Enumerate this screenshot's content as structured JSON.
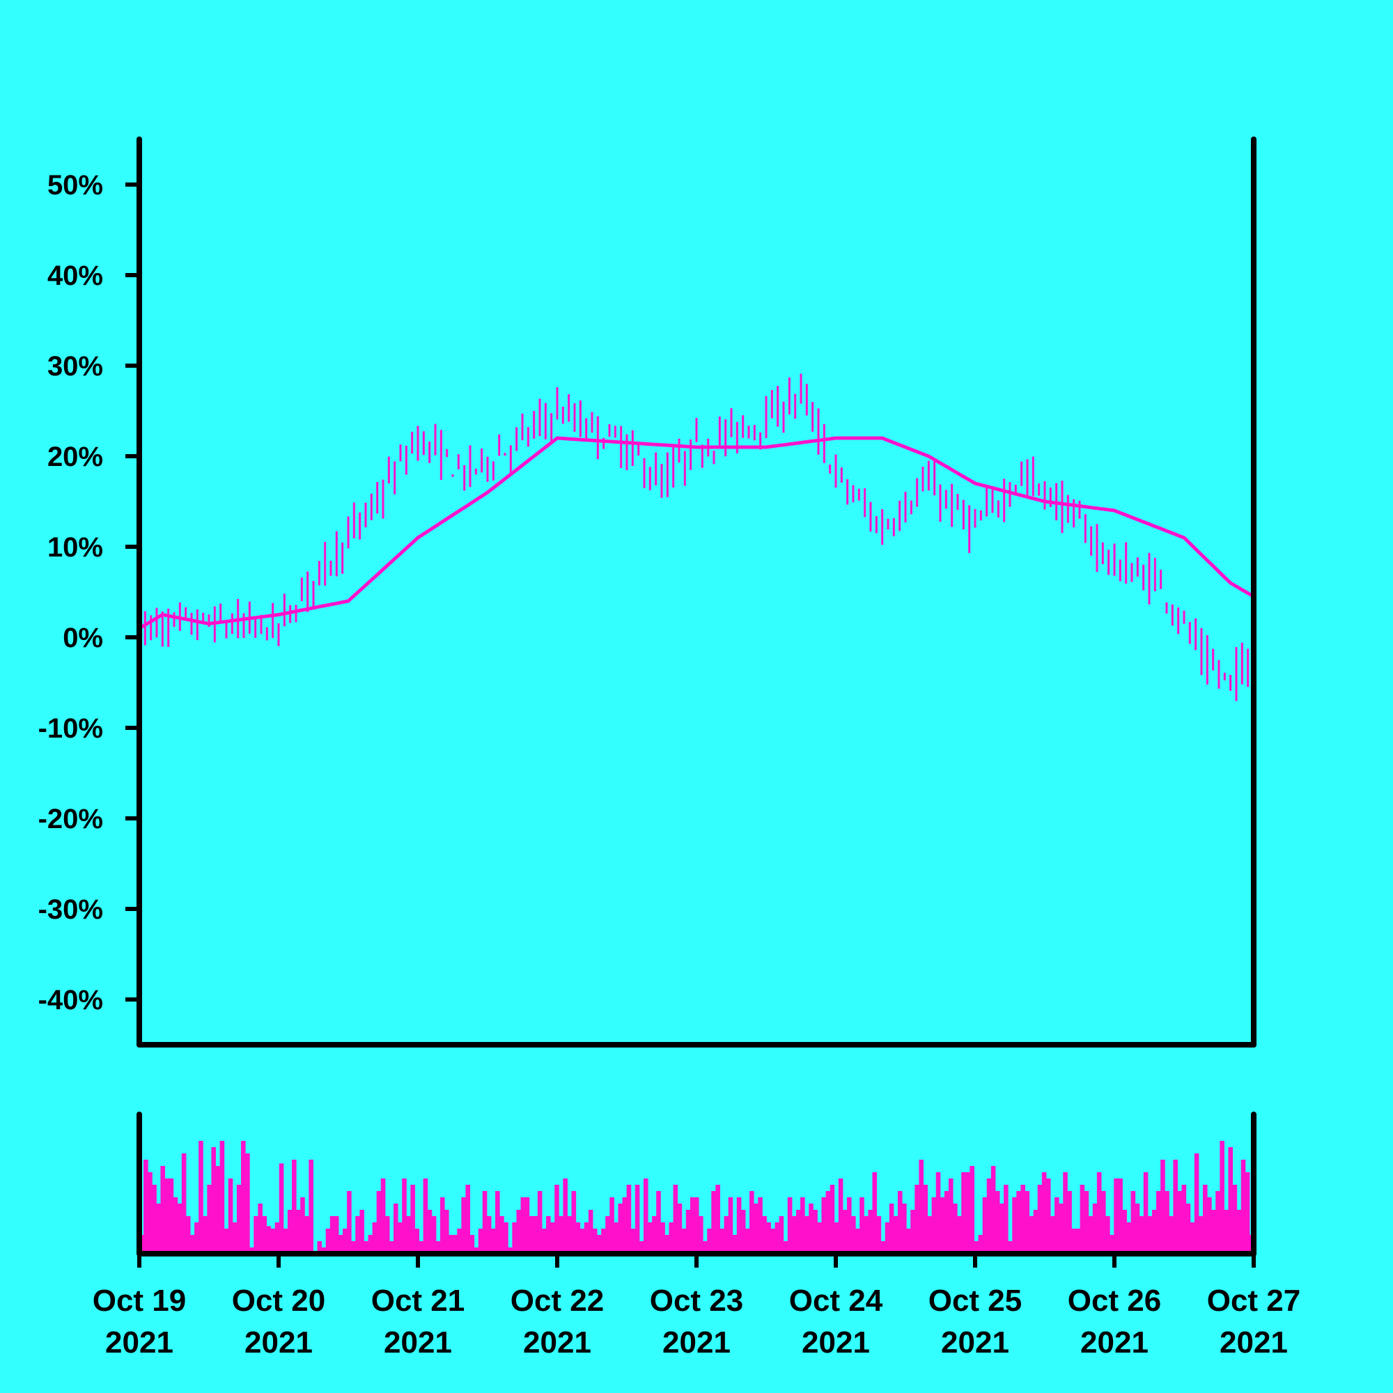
{
  "chart_data": {
    "type": "ohlc",
    "title": "",
    "xlabel": "",
    "ylabel": "",
    "y_unit": "%",
    "ylim": [
      -45,
      55
    ],
    "y_ticks": [
      50,
      40,
      30,
      20,
      10,
      0,
      -10,
      -20,
      -30,
      -40
    ],
    "y_tick_labels": [
      "50%",
      "40%",
      "30%",
      "20%",
      "10%",
      "0%",
      "-10%",
      "-20%",
      "-30%",
      "-40%"
    ],
    "x_range": [
      "2021-10-19",
      "2021-10-27"
    ],
    "x_ticks": [
      "2021-10-19",
      "2021-10-20",
      "2021-10-21",
      "2021-10-22",
      "2021-10-23",
      "2021-10-24",
      "2021-10-25",
      "2021-10-26",
      "2021-10-27"
    ],
    "x_tick_labels": [
      [
        "Oct 19",
        "2021"
      ],
      [
        "Oct 20",
        "2021"
      ],
      [
        "Oct 21",
        "2021"
      ],
      [
        "Oct 22",
        "2021"
      ],
      [
        "Oct 23",
        "2021"
      ],
      [
        "Oct 24",
        "2021"
      ],
      [
        "Oct 25",
        "2021"
      ],
      [
        "Oct 26",
        "2021"
      ],
      [
        "Oct 27",
        "2021"
      ]
    ],
    "bar_interval": "1 hour",
    "grid": false,
    "colors": {
      "background": "#33ffff",
      "series": "#ff11cc",
      "axis": "#000000"
    },
    "price_close": [
      {
        "date": "2021-10-19",
        "value": 1
      },
      {
        "date": "2021-10-19 12:00",
        "value": 1.5
      },
      {
        "date": "2021-10-20",
        "value": 1
      },
      {
        "date": "2021-10-20 08:00",
        "value": 8
      },
      {
        "date": "2021-10-20 16:00",
        "value": 14
      },
      {
        "date": "2021-10-21",
        "value": 22
      },
      {
        "date": "2021-10-21 08:00",
        "value": 18
      },
      {
        "date": "2021-10-21 16:00",
        "value": 21
      },
      {
        "date": "2021-10-22",
        "value": 25
      },
      {
        "date": "2021-10-22 12:00",
        "value": 21
      },
      {
        "date": "2021-10-22 18:00",
        "value": 17
      },
      {
        "date": "2021-10-23",
        "value": 21
      },
      {
        "date": "2021-10-23 12:00",
        "value": 24
      },
      {
        "date": "2021-10-23 18:00",
        "value": 27
      },
      {
        "date": "2021-10-24",
        "value": 18
      },
      {
        "date": "2021-10-24 08:00",
        "value": 12
      },
      {
        "date": "2021-10-24 16:00",
        "value": 17
      },
      {
        "date": "2021-10-25",
        "value": 12
      },
      {
        "date": "2021-10-25 08:00",
        "value": 18
      },
      {
        "date": "2021-10-25 16:00",
        "value": 14
      },
      {
        "date": "2021-10-26",
        "value": 8
      },
      {
        "date": "2021-10-26 08:00",
        "value": 6
      },
      {
        "date": "2021-10-26 16:00",
        "value": -3
      },
      {
        "date": "2021-10-26 20:00",
        "value": -5
      },
      {
        "date": "2021-10-27",
        "value": -2
      }
    ],
    "moving_average": [
      {
        "date": "2021-10-19",
        "value": 1
      },
      {
        "date": "2021-10-19 04:00",
        "value": 2.5
      },
      {
        "date": "2021-10-19 12:00",
        "value": 1.5
      },
      {
        "date": "2021-10-20",
        "value": 2.5
      },
      {
        "date": "2021-10-20 12:00",
        "value": 4
      },
      {
        "date": "2021-10-21",
        "value": 11
      },
      {
        "date": "2021-10-21 12:00",
        "value": 16
      },
      {
        "date": "2021-10-22",
        "value": 22
      },
      {
        "date": "2021-10-22 12:00",
        "value": 21.5
      },
      {
        "date": "2021-10-23",
        "value": 21
      },
      {
        "date": "2021-10-23 12:00",
        "value": 21
      },
      {
        "date": "2021-10-24",
        "value": 22
      },
      {
        "date": "2021-10-24 08:00",
        "value": 22
      },
      {
        "date": "2021-10-24 16:00",
        "value": 20
      },
      {
        "date": "2021-10-25",
        "value": 17
      },
      {
        "date": "2021-10-25 12:00",
        "value": 15
      },
      {
        "date": "2021-10-26",
        "value": 14
      },
      {
        "date": "2021-10-26 12:00",
        "value": 11
      },
      {
        "date": "2021-10-26 20:00",
        "value": 6
      },
      {
        "date": "2021-10-27",
        "value": 4.5
      }
    ],
    "volume": {
      "scale": "relative, 0-1",
      "values": [
        0.15,
        0.75,
        0.65,
        0.55,
        0.4,
        0.7,
        0.6,
        0.6,
        0.45,
        0.4,
        0.8,
        0.3,
        0.15,
        0.25,
        0.9,
        0.3,
        0.55,
        0.85,
        0.7,
        0.9,
        0.2,
        0.6,
        0.25,
        0.55,
        0.9,
        0.8,
        0.05,
        0.3,
        0.4,
        0.3,
        0.22,
        0.2,
        0.25,
        0.72,
        0.2,
        0.35,
        0.75,
        0.35,
        0.45,
        0.3,
        0.75,
        0.0,
        0.1,
        0.05,
        0.2,
        0.3,
        0.3,
        0.15,
        0.2,
        0.5,
        0.1,
        0.3,
        0.35,
        0.1,
        0.15,
        0.25,
        0.5,
        0.6,
        0.3,
        0.1,
        0.4,
        0.25,
        0.6,
        0.3,
        0.55,
        0.2,
        0.1,
        0.6,
        0.35,
        0.3,
        0.1,
        0.45,
        0.35,
        0.15,
        0.15,
        0.2,
        0.45,
        0.55,
        0.15,
        0.05,
        0.2,
        0.5,
        0.3,
        0.2,
        0.5,
        0.3,
        0.25,
        0.05,
        0.25,
        0.35,
        0.45,
        0.45,
        0.3,
        0.3,
        0.5,
        0.2,
        0.3,
        0.25,
        0.55,
        0.3,
        0.6,
        0.3,
        0.5,
        0.25,
        0.2,
        0.25,
        0.35,
        0.2,
        0.15,
        0.2,
        0.3,
        0.45,
        0.25,
        0.4,
        0.45,
        0.55,
        0.2,
        0.55,
        0.1,
        0.6,
        0.25,
        0.3,
        0.5,
        0.25,
        0.15,
        0.25,
        0.55,
        0.4,
        0.2,
        0.35,
        0.45,
        0.45,
        0.3,
        0.1,
        0.2,
        0.5,
        0.55,
        0.2,
        0.3,
        0.45,
        0.15,
        0.45,
        0.35,
        0.2,
        0.5,
        0.4,
        0.45,
        0.3,
        0.25,
        0.2,
        0.25,
        0.3,
        0.1,
        0.45,
        0.3,
        0.35,
        0.45,
        0.3,
        0.4,
        0.35,
        0.25,
        0.45,
        0.5,
        0.55,
        0.25,
        0.6,
        0.35,
        0.45,
        0.3,
        0.2,
        0.45,
        0.3,
        0.35,
        0.65,
        0.3,
        0.1,
        0.25,
        0.4,
        0.3,
        0.5,
        0.4,
        0.2,
        0.35,
        0.55,
        0.75,
        0.55,
        0.3,
        0.45,
        0.65,
        0.45,
        0.5,
        0.6,
        0.4,
        0.3,
        0.65,
        0.65,
        0.7,
        0.1,
        0.15,
        0.45,
        0.6,
        0.7,
        0.5,
        0.4,
        0.55,
        0.1,
        0.45,
        0.5,
        0.55,
        0.5,
        0.3,
        0.35,
        0.55,
        0.65,
        0.6,
        0.3,
        0.45,
        0.4,
        0.65,
        0.5,
        0.2,
        0.2,
        0.55,
        0.5,
        0.3,
        0.4,
        0.65,
        0.5,
        0.3,
        0.15,
        0.6,
        0.6,
        0.35,
        0.25,
        0.5,
        0.4,
        0.3,
        0.65,
        0.3,
        0.35,
        0.5,
        0.75,
        0.5,
        0.3,
        0.75,
        0.5,
        0.55,
        0.4,
        0.25,
        0.8,
        0.3,
        0.55,
        0.45,
        0.35,
        0.5,
        0.9,
        0.35,
        0.85,
        0.55,
        0.35,
        0.75,
        0.65,
        0.15
      ]
    }
  }
}
